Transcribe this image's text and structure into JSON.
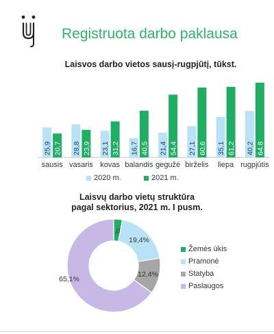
{
  "header": {
    "logo_icon": "person-magnet-logo-icon",
    "title": "Registruota darbo paklausa"
  },
  "colors": {
    "brand_green": "#2fb36a",
    "series_2020": "#b9e2f6",
    "series_2021": "#1fae64",
    "agri": "#1fae64",
    "industry": "#b9e2f6",
    "construction": "#a6a6a6",
    "services": "#c8b8e6"
  },
  "chart_data": [
    {
      "type": "bar",
      "title": "Laisvos darbo vietos sausį-rugpjūtį, tūkst.",
      "categories": [
        "sausis",
        "vasaris",
        "kovas",
        "balandis",
        "gegužė",
        "birželis",
        "liepa",
        "rugpjūtis"
      ],
      "series": [
        {
          "name": "2020 m.",
          "values": [
            25.9,
            28.8,
            23.1,
            16.7,
            21.4,
            27.1,
            35.1,
            40.2
          ],
          "labels": [
            "25,9",
            "28,8",
            "23,1",
            "16,7",
            "21,4",
            "27,1",
            "35,1",
            "40,2"
          ]
        },
        {
          "name": "2021 m.",
          "values": [
            20.7,
            23.9,
            31.2,
            40.5,
            54.4,
            60.6,
            61.2,
            64.8
          ],
          "labels": [
            "20,7",
            "23,9",
            "31,2",
            "40,5",
            "54,4",
            "60,6",
            "61,2",
            "64.8"
          ]
        }
      ],
      "ylim": [
        0,
        70
      ],
      "grid": false,
      "legend": "bottom"
    },
    {
      "type": "pie",
      "donut": true,
      "title_line1": "Laisvų darbo  vietų struktūra",
      "title_line2": "pagal sektorius, 2021 m. I pusm.",
      "slices": [
        {
          "name": "Žemės ūkis",
          "value": 3.0,
          "label": "3,0%"
        },
        {
          "name": "Pramonė",
          "value": 19.4,
          "label": "19,4%"
        },
        {
          "name": "Statyba",
          "value": 12.4,
          "label": "12,4%"
        },
        {
          "name": "Paslaugos",
          "value": 65.1,
          "label": "65,1%"
        }
      ],
      "legend": "right"
    }
  ]
}
